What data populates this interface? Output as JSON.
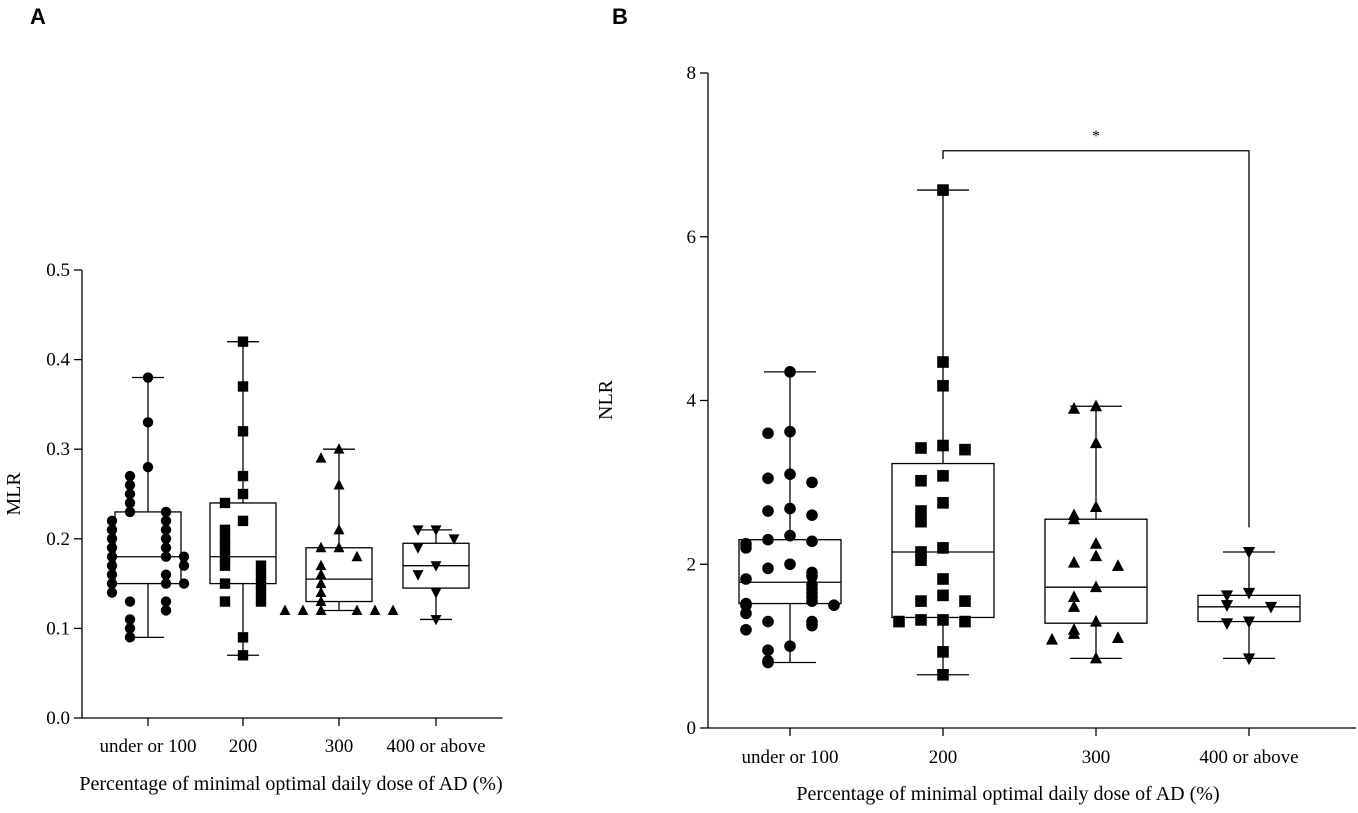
{
  "chart_data": [
    {
      "panel": "A",
      "type": "box",
      "title": "",
      "xlabel": "Percentage of minimal optimal daily dose of AD (%)",
      "ylabel": "MLR",
      "ylim": [
        0,
        0.5
      ],
      "yticks": [
        "0.0",
        "0.1",
        "0.2",
        "0.3",
        "0.4",
        "0.5"
      ],
      "categories": [
        "under or 100",
        "200",
        "300",
        "400 or above"
      ],
      "markers": [
        "circle",
        "square",
        "triangle-up",
        "triangle-down"
      ],
      "boxes": [
        {
          "min": 0.09,
          "q1": 0.15,
          "median": 0.18,
          "q3": 0.23,
          "max": 0.38
        },
        {
          "min": 0.07,
          "q1": 0.15,
          "median": 0.18,
          "q3": 0.24,
          "max": 0.42
        },
        {
          "min": 0.12,
          "q1": 0.13,
          "median": 0.155,
          "q3": 0.19,
          "max": 0.3
        },
        {
          "min": 0.11,
          "q1": 0.145,
          "median": 0.17,
          "q3": 0.195,
          "max": 0.21
        }
      ],
      "points": [
        [
          0.38,
          0.33,
          0.28,
          0.27,
          0.26,
          0.25,
          0.24,
          0.23,
          0.23,
          0.22,
          0.22,
          0.21,
          0.21,
          0.2,
          0.2,
          0.19,
          0.19,
          0.18,
          0.18,
          0.18,
          0.17,
          0.17,
          0.16,
          0.16,
          0.15,
          0.15,
          0.15,
          0.14,
          0.13,
          0.13,
          0.12,
          0.11,
          0.1,
          0.09
        ],
        [
          0.42,
          0.37,
          0.32,
          0.27,
          0.25,
          0.24,
          0.22,
          0.21,
          0.2,
          0.19,
          0.18,
          0.17,
          0.17,
          0.16,
          0.15,
          0.15,
          0.14,
          0.13,
          0.13,
          0.09,
          0.07
        ],
        [
          0.3,
          0.29,
          0.26,
          0.21,
          0.19,
          0.19,
          0.18,
          0.17,
          0.16,
          0.15,
          0.14,
          0.13,
          0.12,
          0.12,
          0.12,
          0.12,
          0.12,
          0.12
        ],
        [
          0.21,
          0.21,
          0.2,
          0.19,
          0.17,
          0.16,
          0.14,
          0.11
        ]
      ],
      "annotations": []
    },
    {
      "panel": "B",
      "type": "box",
      "title": "",
      "xlabel": "Percentage of minimal optimal daily dose of AD (%)",
      "ylabel": "NLR",
      "ylim": [
        0,
        8
      ],
      "yticks": [
        "0",
        "2",
        "4",
        "6",
        "8"
      ],
      "categories": [
        "under or 100",
        "200",
        "300",
        "400 or above"
      ],
      "markers": [
        "circle",
        "square",
        "triangle-up",
        "triangle-down"
      ],
      "boxes": [
        {
          "min": 0.8,
          "q1": 1.52,
          "median": 1.78,
          "q3": 2.3,
          "max": 4.35
        },
        {
          "min": 0.65,
          "q1": 1.35,
          "median": 2.15,
          "q3": 3.23,
          "max": 6.57
        },
        {
          "min": 0.85,
          "q1": 1.28,
          "median": 1.72,
          "q3": 2.55,
          "max": 3.93
        },
        {
          "min": 0.85,
          "q1": 1.3,
          "median": 1.48,
          "q3": 1.62,
          "max": 2.15
        }
      ],
      "points": [
        [
          4.35,
          3.62,
          3.6,
          3.1,
          3.05,
          3.0,
          2.68,
          2.65,
          2.6,
          2.35,
          2.3,
          2.28,
          2.25,
          2.2,
          2.0,
          1.95,
          1.9,
          1.85,
          1.82,
          1.75,
          1.7,
          1.65,
          1.6,
          1.55,
          1.52,
          1.5,
          1.5,
          1.4,
          1.3,
          1.3,
          1.25,
          1.2,
          1.0,
          0.95,
          0.82,
          0.8
        ],
        [
          6.57,
          4.47,
          4.18,
          3.45,
          3.42,
          3.4,
          3.08,
          3.02,
          2.75,
          2.65,
          2.52,
          2.2,
          2.15,
          2.05,
          1.82,
          1.62,
          1.55,
          1.55,
          1.32,
          1.32,
          1.3,
          1.3,
          0.93,
          0.65
        ],
        [
          3.93,
          3.9,
          3.48,
          2.7,
          2.6,
          2.55,
          2.25,
          2.1,
          2.02,
          1.98,
          1.72,
          1.6,
          1.48,
          1.3,
          1.2,
          1.15,
          1.1,
          1.08,
          0.85
        ],
        [
          2.15,
          1.65,
          1.62,
          1.5,
          1.48,
          1.3,
          1.28,
          0.85
        ]
      ],
      "annotations": [
        {
          "text": "*",
          "from_category": "200",
          "to_category": "400 or above",
          "y": 7.05,
          "left_end": 6.95,
          "right_end": 2.45
        }
      ]
    }
  ]
}
